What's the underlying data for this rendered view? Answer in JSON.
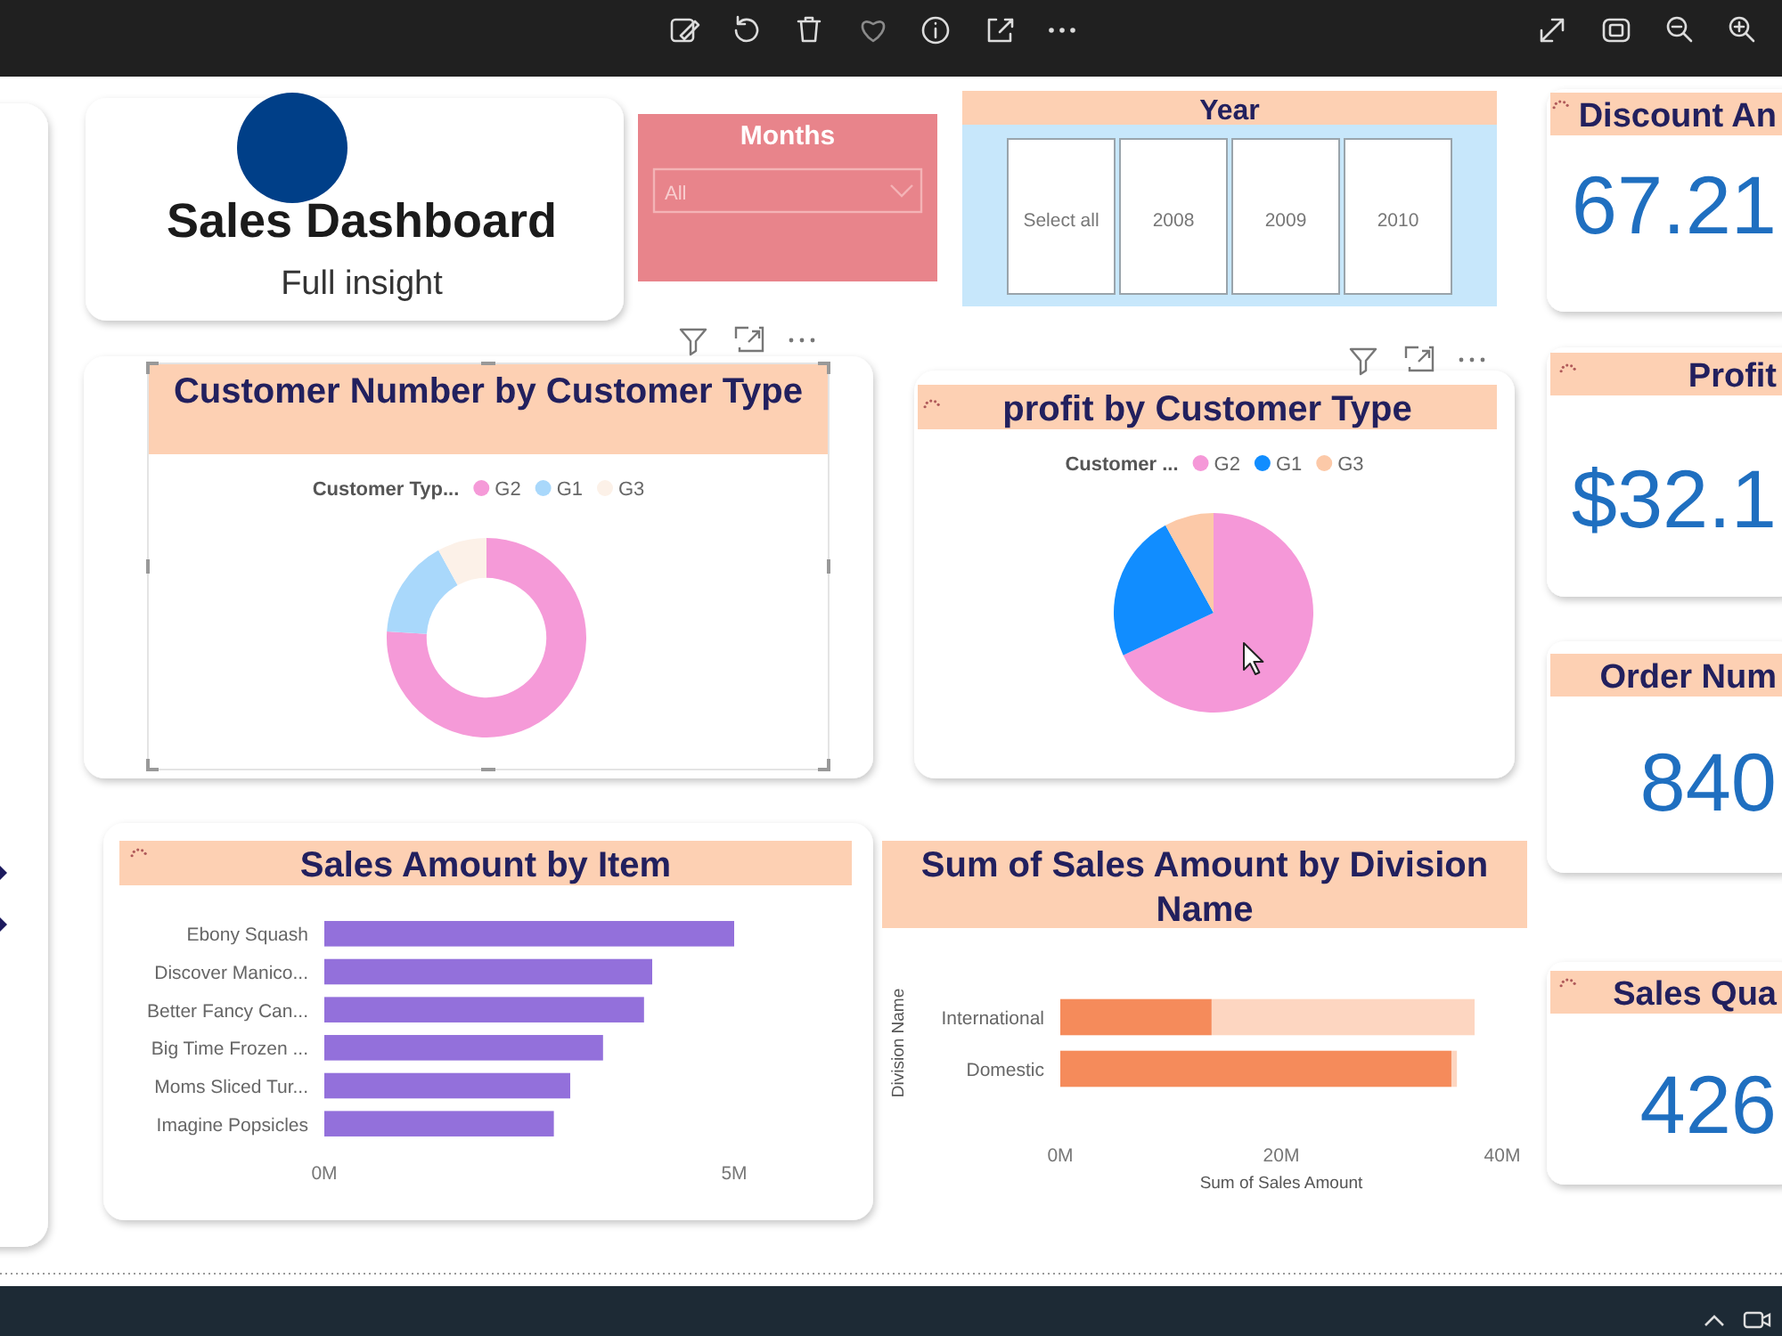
{
  "chart_data": [
    {
      "type": "other",
      "title": "Sales Dashboard",
      "subtitle": "Full insight"
    },
    {
      "type": "other",
      "title": "Months",
      "annotations": [
        "All"
      ]
    },
    {
      "type": "other",
      "title": "Year",
      "categories": [
        "Select all",
        "2008",
        "2009",
        "2010"
      ]
    },
    {
      "type": "other",
      "title": "Discount An",
      "annotations": [
        "67.21"
      ]
    },
    {
      "type": "donut",
      "title": "Customer Number by Customer Type",
      "legend_title": "Customer Typ...",
      "categories": [
        "G2",
        "G1",
        "G3"
      ],
      "values": [
        76,
        16,
        8
      ],
      "colors": [
        "#f59ad8",
        "#a9d8fb",
        "#fcf1e8"
      ],
      "legend": "top"
    },
    {
      "type": "pie",
      "title": "profit by Customer Type",
      "legend_title": "Customer ...",
      "categories": [
        "G2",
        "G1",
        "G3"
      ],
      "values": [
        68,
        24,
        8
      ],
      "colors": [
        "#f598d8",
        "#118dff",
        "#fcc9a8"
      ],
      "legend": "top"
    },
    {
      "type": "other",
      "title": "Profit",
      "annotations": [
        "$32.1"
      ]
    },
    {
      "type": "other",
      "title": "Order Num",
      "annotations": [
        "840"
      ]
    },
    {
      "type": "bar",
      "orientation": "horizontal",
      "title": "Sales Amount by Item",
      "categories": [
        "Ebony Squash",
        "Discover Manico...",
        "Better Fancy Can...",
        "Big Time Frozen ...",
        "Moms Sliced Tur...",
        "Imagine Popsicles"
      ],
      "values": [
        5.0,
        4.0,
        3.9,
        3.4,
        3.0,
        2.8
      ],
      "color": "#9370db",
      "xlim": [
        0,
        5
      ],
      "xticks": [
        {
          "value": 0,
          "label": "0M"
        },
        {
          "value": 5,
          "label": "5M"
        }
      ]
    },
    {
      "type": "bar",
      "orientation": "horizontal",
      "stacked": true,
      "title": "Sum of Sales Amount by Division Name",
      "xlabel": "Sum of Sales Amount",
      "ylabel": "Division Name",
      "categories": [
        "International",
        "Domestic"
      ],
      "series": [
        {
          "color": "#f58b5b",
          "values": [
            13.7,
            35.4
          ]
        },
        {
          "color": "#fdd6c1",
          "values": [
            23.8,
            0.5
          ]
        }
      ],
      "xlim": [
        0,
        40
      ],
      "xticks": [
        {
          "value": 0,
          "label": "0M"
        },
        {
          "value": 20,
          "label": "20M"
        },
        {
          "value": 40,
          "label": "40M"
        }
      ]
    },
    {
      "type": "other",
      "title": "Sales Qua",
      "annotations": [
        "426"
      ]
    }
  ]
}
